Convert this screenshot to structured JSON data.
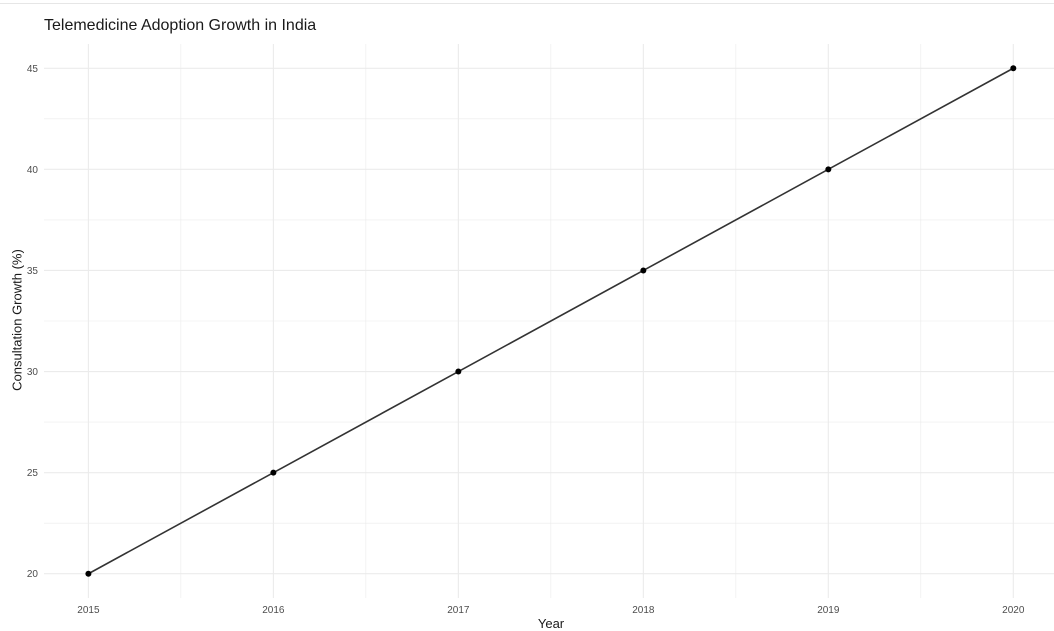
{
  "chart_data": {
    "type": "line",
    "title": "Telemedicine Adoption Growth in India",
    "xlabel": "Year",
    "ylabel": "Consultation Growth (%)",
    "x": [
      2015,
      2016,
      2017,
      2018,
      2019,
      2020
    ],
    "series": [
      {
        "values": [
          20,
          25,
          30,
          35,
          40,
          45
        ]
      }
    ],
    "xlim": [
      2014.76,
      2020.22
    ],
    "ylim": [
      18.8,
      46.2
    ],
    "y_ticks": [
      20,
      25,
      30,
      35,
      40,
      45
    ],
    "x_ticks": [
      2015,
      2016,
      2017,
      2018,
      2019,
      2020
    ],
    "grid": true,
    "legend": "none",
    "line_color": "#333333",
    "point_color": "#000000",
    "grid_color": "#ebebeb"
  }
}
